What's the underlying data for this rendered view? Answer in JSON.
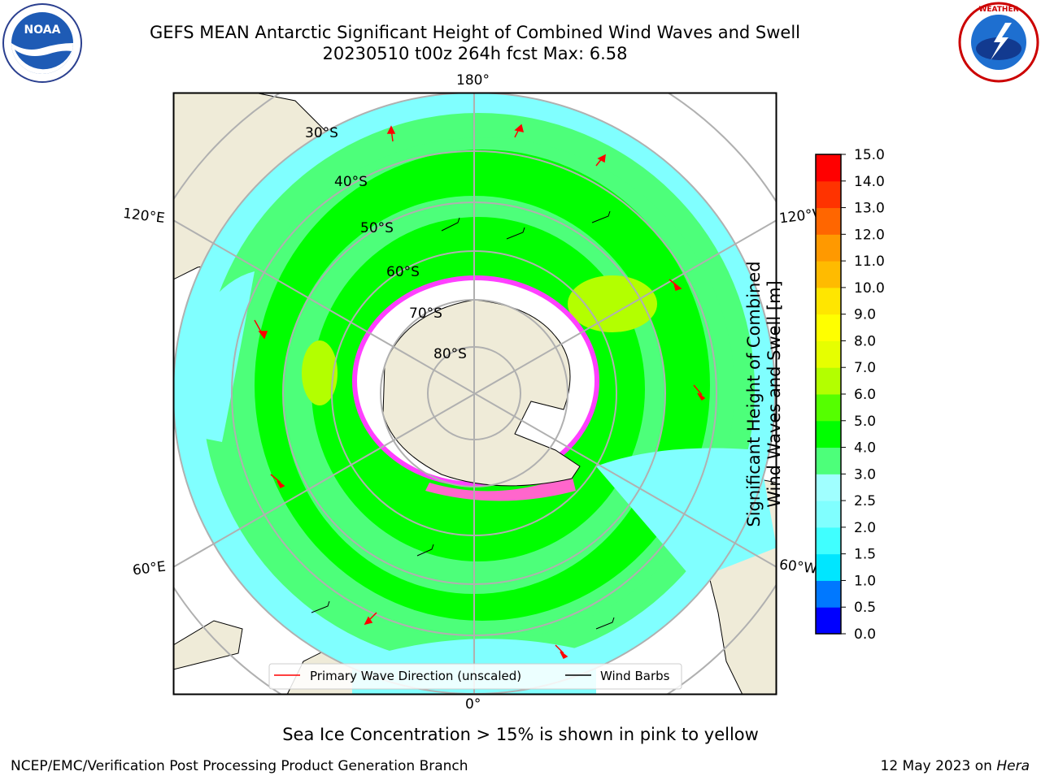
{
  "header": {
    "title_line1": "GEFS MEAN Antarctic Significant Height of Combined Wind Waves and Swell",
    "title_line2": "20230510 t00z 264h fcst   Max: 6.58"
  },
  "logos": {
    "left": {
      "text": "NOAA",
      "ring_text": "NATIONAL OCEANIC AND ATMOSPHERIC ADMINISTRATION · U.S. DEPARTMENT OF COMMERCE"
    },
    "right": {
      "ring_text": "NATIONAL WEATHER SERVICE"
    }
  },
  "map": {
    "longitude_labels": {
      "top": "180°",
      "bottom": "0°",
      "upper_left": "120°E",
      "upper_right": "120°W",
      "lower_left": "60°E",
      "lower_right": "60°W"
    },
    "latitude_labels": [
      "30°S",
      "40°S",
      "50°S",
      "60°S",
      "70°S",
      "80°S"
    ],
    "legend": {
      "wave_direction": "Primary Wave Direction (unscaled)",
      "wind_barbs": "Wind Barbs"
    }
  },
  "colorbar": {
    "label_line1": "Significant Height of Combined",
    "label_line2": "Wind Waves and Swell [m]",
    "ticks": [
      "0.0",
      "0.5",
      "1.0",
      "1.5",
      "2.0",
      "2.5",
      "3.0",
      "4.0",
      "5.0",
      "6.0",
      "7.0",
      "8.0",
      "9.0",
      "10.0",
      "11.0",
      "12.0",
      "13.0",
      "14.0",
      "15.0"
    ],
    "colors": [
      "#0000ff",
      "#0078ff",
      "#00e6ff",
      "#40ffff",
      "#80ffff",
      "#a0ffff",
      "#4dff7a",
      "#00ff00",
      "#55ff00",
      "#b3ff00",
      "#e6ff00",
      "#ffff00",
      "#ffe600",
      "#ffbb00",
      "#ff9900",
      "#ff6600",
      "#ff3300",
      "#ff0000"
    ]
  },
  "note": "Sea Ice Concentration > 15% is shown in pink to yellow",
  "footer": {
    "left": "NCEP/EMC/Verification Post Processing Product Generation Branch",
    "right_date": "12 May 2023 on ",
    "right_machine": "Hera"
  }
}
